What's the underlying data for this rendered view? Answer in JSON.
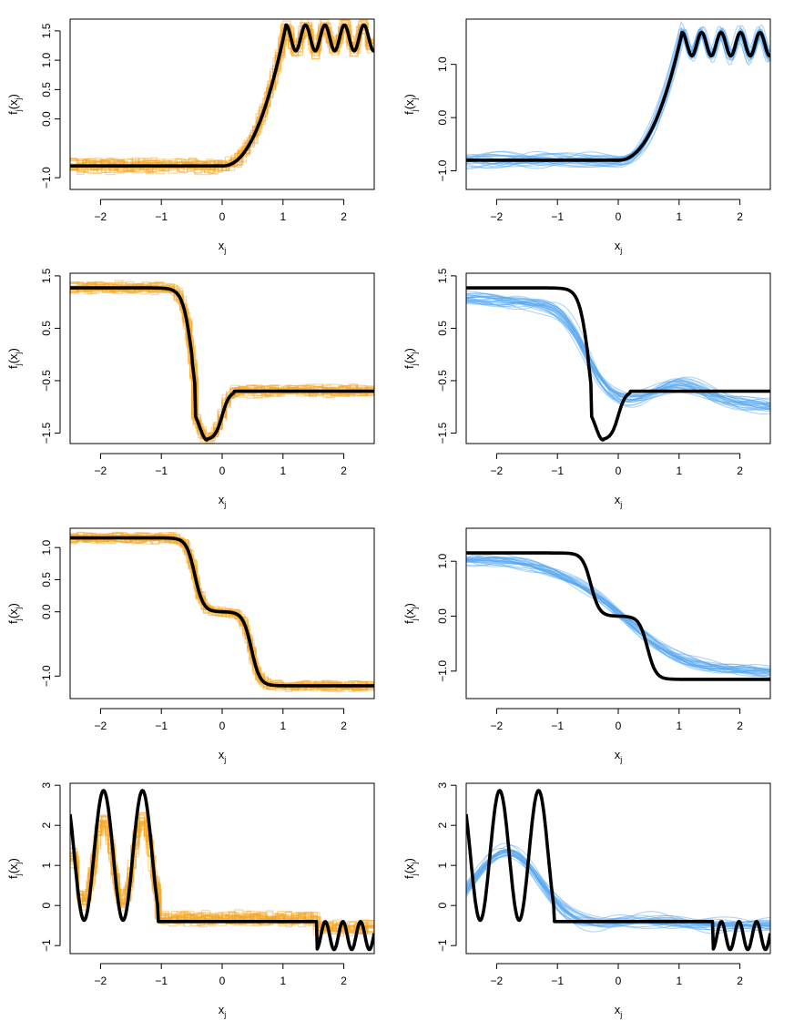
{
  "colors": {
    "tree": "#f5a623",
    "spline": "#5aa9f2",
    "truth": "#000000"
  },
  "chart_data": [
    {
      "type": "line",
      "id": "r1-tree",
      "row": 1,
      "style": "tree",
      "truth": "f1",
      "fit": "f1",
      "seed": 11,
      "spread": 0.13,
      "xlim": [
        -2.5,
        2.5
      ],
      "ylim": [
        -1.2,
        1.7
      ],
      "x_ticks": [
        -2,
        -1,
        0,
        1,
        2
      ],
      "x_tick_labels": [
        "−2",
        "−1",
        "0",
        "1",
        "2"
      ],
      "y_ticks": [
        -1,
        0,
        0.5,
        1,
        1.5
      ],
      "y_tick_labels": [
        "−1.0",
        "0.0",
        "0.5",
        "1.0",
        "1.5"
      ],
      "xlabel_main": "x",
      "xlabel_sub": "j",
      "ylabel_main": "f",
      "ylabel_sub1": "j",
      "ylabel_mid": "(x",
      "ylabel_sub2": "j",
      "ylabel_end": ")"
    },
    {
      "type": "line",
      "id": "r1-spline",
      "row": 1,
      "style": "spline",
      "truth": "f1",
      "fit": "f1",
      "seed": 21,
      "spread": 0.15,
      "xlim": [
        -2.5,
        2.5
      ],
      "ylim": [
        -1.35,
        1.85
      ],
      "x_ticks": [
        -2,
        -1,
        0,
        1,
        2
      ],
      "x_tick_labels": [
        "−2",
        "−1",
        "0",
        "1",
        "2"
      ],
      "y_ticks": [
        -1,
        0,
        1
      ],
      "y_tick_labels": [
        "−1.0",
        "0.0",
        "1.0"
      ],
      "xlabel_main": "x",
      "xlabel_sub": "j",
      "ylabel_main": "f",
      "ylabel_sub1": "j",
      "ylabel_mid": "(x",
      "ylabel_sub2": "j",
      "ylabel_end": ")"
    },
    {
      "type": "line",
      "id": "r2-tree",
      "row": 2,
      "style": "tree",
      "truth": "f2",
      "fit": "f2",
      "seed": 31,
      "spread": 0.12,
      "xlim": [
        -2.5,
        2.5
      ],
      "ylim": [
        -1.7,
        1.55
      ],
      "x_ticks": [
        -2,
        -1,
        0,
        1,
        2
      ],
      "x_tick_labels": [
        "−2",
        "−1",
        "0",
        "1",
        "2"
      ],
      "y_ticks": [
        -1.5,
        -0.5,
        0.5,
        1.5
      ],
      "y_tick_labels": [
        "−1.5",
        "−0.5",
        "0.5",
        "1.5"
      ],
      "xlabel_main": "x",
      "xlabel_sub": "j",
      "ylabel_main": "f",
      "ylabel_sub1": "j",
      "ylabel_mid": "(x",
      "ylabel_sub2": "j",
      "ylabel_end": ")"
    },
    {
      "type": "line",
      "id": "r2-spline",
      "row": 2,
      "style": "spline",
      "truth": "f2",
      "fit": "f2s",
      "seed": 41,
      "spread": 0.15,
      "xlim": [
        -2.5,
        2.5
      ],
      "ylim": [
        -1.7,
        1.55
      ],
      "x_ticks": [
        -2,
        -1,
        0,
        1,
        2
      ],
      "x_tick_labels": [
        "−2",
        "−1",
        "0",
        "1",
        "2"
      ],
      "y_ticks": [
        -1.5,
        -0.5,
        0.5,
        1.5
      ],
      "y_tick_labels": [
        "−1.5",
        "−0.5",
        "0.5",
        "1.5"
      ],
      "xlabel_main": "x",
      "xlabel_sub": "j",
      "ylabel_main": "f",
      "ylabel_sub1": "j",
      "ylabel_mid": "(x",
      "ylabel_sub2": "j",
      "ylabel_end": ")"
    },
    {
      "type": "line",
      "id": "r3-tree",
      "row": 3,
      "style": "tree",
      "truth": "f3",
      "fit": "f3",
      "seed": 51,
      "spread": 0.08,
      "xlim": [
        -2.5,
        2.5
      ],
      "ylim": [
        -1.35,
        1.3
      ],
      "x_ticks": [
        -2,
        -1,
        0,
        1,
        2
      ],
      "x_tick_labels": [
        "−2",
        "−1",
        "0",
        "1",
        "2"
      ],
      "y_ticks": [
        -1,
        0,
        0.5,
        1
      ],
      "y_tick_labels": [
        "−1.0",
        "0.0",
        "0.5",
        "1.0"
      ],
      "xlabel_main": "x",
      "xlabel_sub": "j",
      "ylabel_main": "f",
      "ylabel_sub1": "j",
      "ylabel_mid": "(x",
      "ylabel_sub2": "j",
      "ylabel_end": ")"
    },
    {
      "type": "line",
      "id": "r3-spline",
      "row": 3,
      "style": "spline",
      "truth": "f3",
      "fit": "f3s",
      "seed": 61,
      "spread": 0.1,
      "xlim": [
        -2.5,
        2.5
      ],
      "ylim": [
        -1.5,
        1.6
      ],
      "x_ticks": [
        -2,
        -1,
        0,
        1,
        2
      ],
      "x_tick_labels": [
        "−2",
        "−1",
        "0",
        "1",
        "2"
      ],
      "y_ticks": [
        -1,
        0,
        1
      ],
      "y_tick_labels": [
        "−1.0",
        "0.0",
        "1.0"
      ],
      "xlabel_main": "x",
      "xlabel_sub": "j",
      "ylabel_main": "f",
      "ylabel_sub1": "j",
      "ylabel_mid": "(x",
      "ylabel_sub2": "j",
      "ylabel_end": ")"
    },
    {
      "type": "line",
      "id": "r4-tree",
      "row": 4,
      "style": "tree",
      "truth": "f4",
      "fit": "f4t",
      "seed": 71,
      "spread": 0.18,
      "xlim": [
        -2.5,
        2.5
      ],
      "ylim": [
        -1.2,
        3.05
      ],
      "x_ticks": [
        -2,
        -1,
        0,
        1,
        2
      ],
      "x_tick_labels": [
        "−2",
        "−1",
        "0",
        "1",
        "2"
      ],
      "y_ticks": [
        -1,
        0,
        1,
        2,
        3
      ],
      "y_tick_labels": [
        "−1",
        "0",
        "1",
        "2",
        "3"
      ],
      "xlabel_main": "x",
      "xlabel_sub": "j",
      "ylabel_main": "f",
      "ylabel_sub1": "j",
      "ylabel_mid": "(x",
      "ylabel_sub2": "j",
      "ylabel_end": ")"
    },
    {
      "type": "line",
      "id": "r4-spline",
      "row": 4,
      "style": "spline",
      "truth": "f4",
      "fit": "f4s",
      "seed": 81,
      "spread": 0.18,
      "xlim": [
        -2.5,
        2.5
      ],
      "ylim": [
        -1.2,
        3.05
      ],
      "x_ticks": [
        -2,
        -1,
        0,
        1,
        2
      ],
      "x_tick_labels": [
        "−2",
        "−1",
        "0",
        "1",
        "2"
      ],
      "y_ticks": [
        -1,
        0,
        1,
        2,
        3
      ],
      "y_tick_labels": [
        "−1",
        "0",
        "1",
        "2",
        "3"
      ],
      "xlabel_main": "x",
      "xlabel_sub": "j",
      "ylabel_main": "f",
      "ylabel_sub1": "j",
      "ylabel_mid": "(x",
      "ylabel_sub2": "j",
      "ylabel_end": ")"
    }
  ]
}
